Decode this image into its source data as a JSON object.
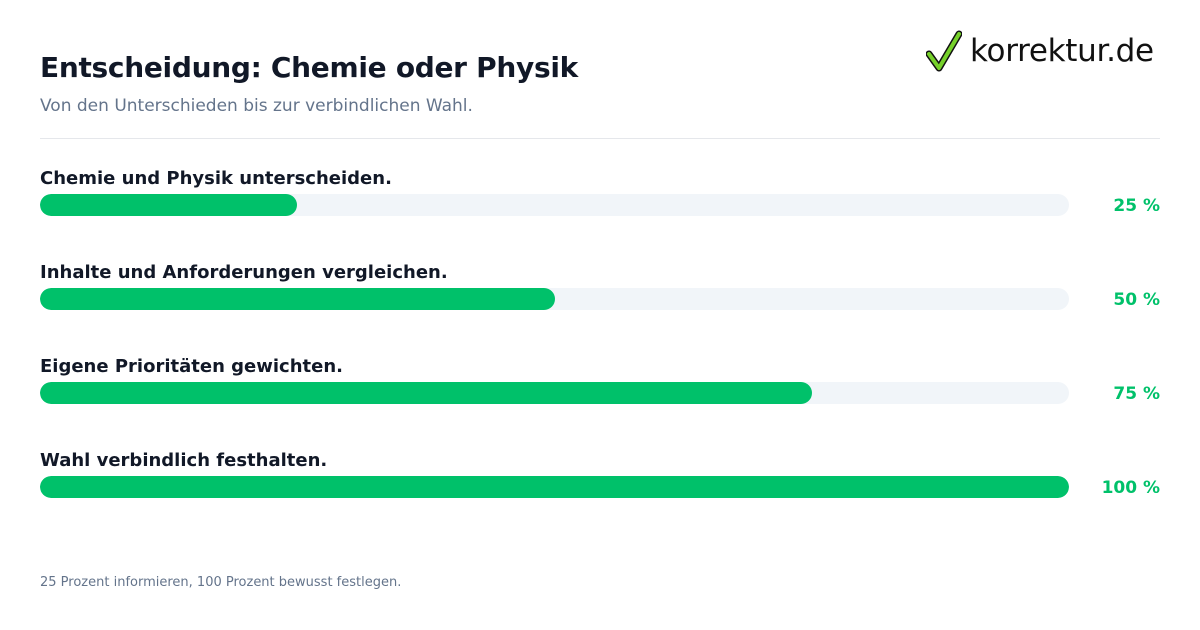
{
  "header": {
    "title": "Entscheidung: Chemie oder Physik",
    "subtitle": "Von den Unterschieden bis zur verbindlichen Wahl."
  },
  "logo": {
    "text": "korrektur.de",
    "icon": "checkmark-icon",
    "icon_color": "#76d12a"
  },
  "steps": [
    {
      "label": "Chemie und Physik unterscheiden.",
      "percent_text": "25 %",
      "progress": 0.25
    },
    {
      "label": "Inhalte und Anforderungen vergleichen.",
      "percent_text": "50 %",
      "progress": 0.5
    },
    {
      "label": "Eigene Prioritäten gewichten.",
      "percent_text": "75 %",
      "progress": 0.75
    },
    {
      "label": "Wahl verbindlich festhalten.",
      "percent_text": "100 %",
      "progress": 1.0
    }
  ],
  "footer": {
    "note": "25 Prozent informieren, 100 Prozent bewusst festlegen."
  },
  "colors": {
    "accent": "#00c16a",
    "track": "#f1f5f9",
    "title": "#111827",
    "muted": "#64748b"
  }
}
